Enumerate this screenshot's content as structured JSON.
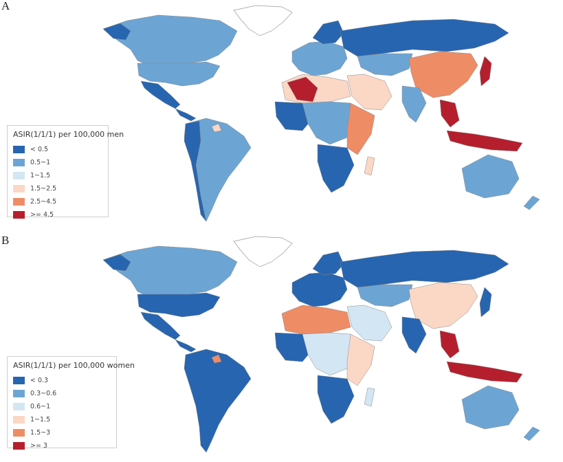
{
  "panels": [
    {
      "label": "A",
      "legend": {
        "title": "ASIR(1/1/1) per 100,000 men",
        "items": [
          {
            "label": "< 0.5",
            "color": "#2765b0"
          },
          {
            "label": "0.5~1",
            "color": "#6ca5d4"
          },
          {
            "label": "1~1.5",
            "color": "#d3e6f4"
          },
          {
            "label": "1.5~2.5",
            "color": "#fbd7c5"
          },
          {
            "label": "2.5~4.5",
            "color": "#ee8c66"
          },
          {
            "label": ">= 4.5",
            "color": "#b51f2d"
          }
        ]
      }
    },
    {
      "label": "B",
      "legend": {
        "title": "ASIR(1/1/1) per 100,000 women",
        "items": [
          {
            "label": "< 0.3",
            "color": "#2765b0"
          },
          {
            "label": "0.3~0.6",
            "color": "#6ca5d4"
          },
          {
            "label": "0.6~1",
            "color": "#d3e6f4"
          },
          {
            "label": "1~1.5",
            "color": "#fbd7c5"
          },
          {
            "label": "1.5~3",
            "color": "#ee8c66"
          },
          {
            "label": ">= 3",
            "color": "#b51f2d"
          }
        ]
      }
    }
  ]
}
